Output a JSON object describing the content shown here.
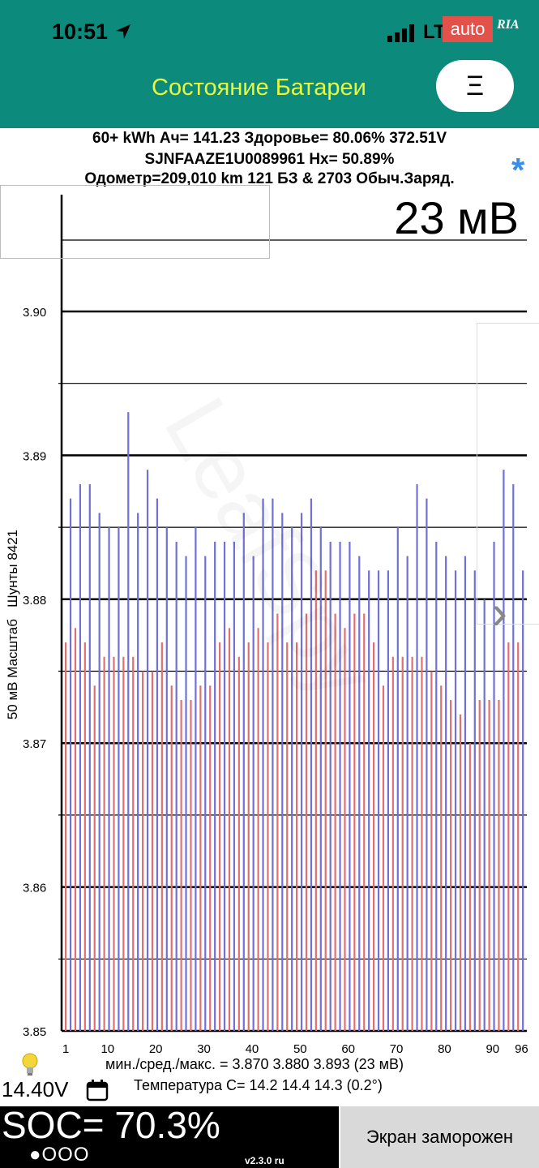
{
  "status_bar": {
    "time": "10:51",
    "network": "LT",
    "ad_badge": "auto",
    "ad_logo": "RIA"
  },
  "header": {
    "title": "Состояние Батареи",
    "menu_label": "Ξ"
  },
  "info": {
    "line1": "60+ kWh  Ач= 141.23  Здоровье= 80.06%   372.51V",
    "line2": "SJNFAAZE1U0089961    Hx= 50.89%",
    "line3": "Одометр=209,010 km 121 БЗ & 2703 Обыч.Заряд."
  },
  "delta_display": "23 мВ",
  "y_axis_label": "50 мВ Масштаб   Шунты 8421",
  "chart_data": {
    "type": "bar",
    "ylim": [
      3.85,
      3.9
    ],
    "y_ticks": [
      "3.85",
      "3.86",
      "3.87",
      "3.88",
      "3.89",
      "3.90"
    ],
    "x_ticks": [
      "1",
      "10",
      "20",
      "30",
      "40",
      "50",
      "60",
      "70",
      "80",
      "90",
      "96"
    ],
    "series": [
      {
        "name": "",
        "color": "#e07070",
        "values": [
          3.877,
          3.878,
          3.877,
          3.874,
          3.876,
          3.876,
          3.876,
          3.876,
          3.875,
          3.875,
          3.877,
          3.874,
          3.873,
          3.873,
          3.874,
          3.874,
          3.877,
          3.878,
          3.876,
          3.877,
          3.878,
          3.877,
          3.879,
          3.877,
          3.877,
          3.879,
          3.882,
          3.882,
          3.879,
          3.878,
          3.879,
          3.879,
          3.877,
          3.874,
          3.876,
          3.876,
          3.876,
          3.876,
          3.875,
          3.874,
          3.873,
          3.872,
          3.87,
          3.873,
          3.873,
          3.873,
          3.877,
          3.877,
          3.877,
          3.876
        ]
      },
      {
        "name": "",
        "color": "#7070d8",
        "values": [
          3.887,
          3.888,
          3.888,
          3.886,
          3.885,
          3.885,
          3.893,
          3.886,
          3.889,
          3.887,
          3.885,
          3.884,
          3.883,
          3.885,
          3.883,
          3.884,
          3.884,
          3.884,
          3.886,
          3.883,
          3.887,
          3.887,
          3.886,
          3.885,
          3.886,
          3.887,
          3.885,
          3.884,
          3.884,
          3.884,
          3.883,
          3.882,
          3.882,
          3.882,
          3.885,
          3.883,
          3.888,
          3.887,
          3.884,
          3.883,
          3.882,
          3.883,
          3.882,
          3.88,
          3.884,
          3.889,
          3.888,
          3.882
        ]
      }
    ]
  },
  "stats": {
    "line1": "мин./сред./макс. = 3.870 3.880 3.893  (23 мВ)",
    "line2": "Температура С= 14.2  14.4  14.3  (0.2°)"
  },
  "battery_12v": "14.40V",
  "soc": "SOC= 70.3%",
  "page_dots": "●OOO",
  "version": "v2.3.0 ru",
  "freeze_button": "Экран заморожен"
}
